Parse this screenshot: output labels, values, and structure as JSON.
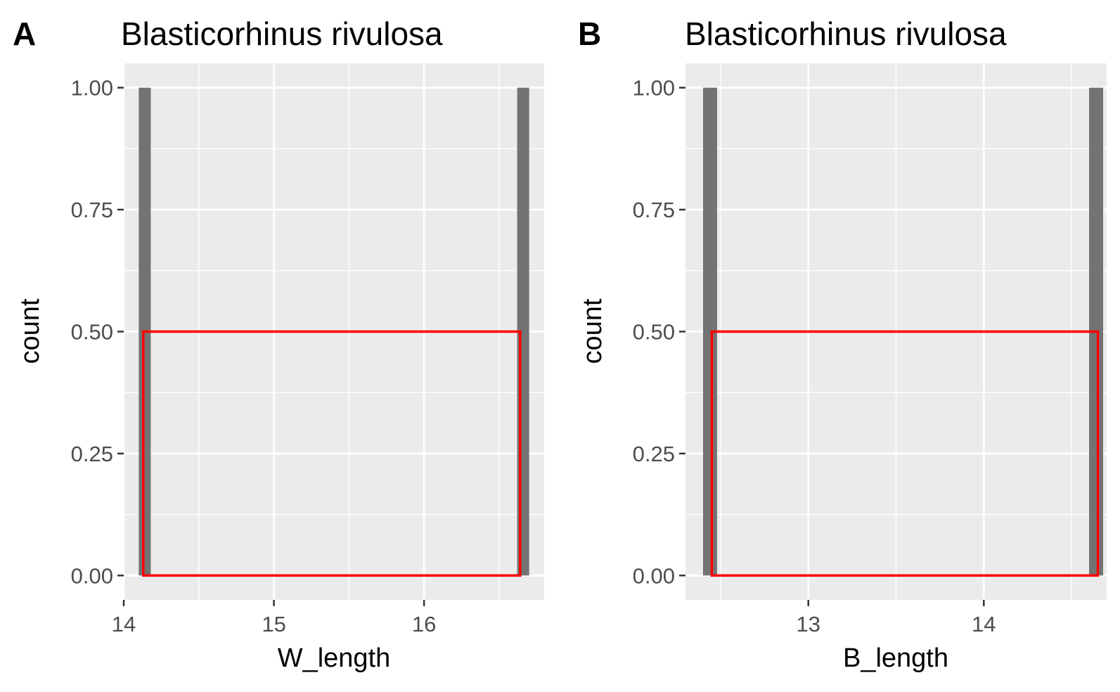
{
  "chart_data": [
    {
      "type": "bar",
      "tag": "A",
      "title": "Blasticorhinus rivulosa",
      "xlabel": "W_length",
      "ylabel": "count",
      "xlim": [
        14.0,
        16.8
      ],
      "ylim": [
        -0.05,
        1.05
      ],
      "x_ticks": [
        14,
        15,
        16
      ],
      "x_tick_labels": [
        "14",
        "15",
        "16"
      ],
      "x_minor_gridlines": [
        14.5,
        15.5,
        16.5
      ],
      "y_ticks": [
        0,
        0.25,
        0.5,
        0.75,
        1
      ],
      "y_tick_labels": [
        "0.00",
        "0.25",
        "0.50",
        "0.75",
        "1.00"
      ],
      "y_minor_gridlines": [
        0.125,
        0.375,
        0.625,
        0.875
      ],
      "grid": true,
      "bars": [
        {
          "x_start": 14.1,
          "x_end": 14.18,
          "count": 1
        },
        {
          "x_start": 16.62,
          "x_end": 16.7,
          "count": 1
        }
      ],
      "overlay_rect": {
        "x_start": 14.13,
        "x_end": 16.64,
        "y_start": 0,
        "y_end": 0.5,
        "color": "#ff0000"
      },
      "bar_color": "#737373",
      "panel_bg": "#ebebeb"
    },
    {
      "type": "bar",
      "tag": "B",
      "title": "Blasticorhinus rivulosa",
      "xlabel": "B_length",
      "ylabel": "count",
      "xlim": [
        12.3,
        14.7
      ],
      "ylim": [
        -0.05,
        1.05
      ],
      "x_ticks": [
        13,
        14
      ],
      "x_tick_labels": [
        "13",
        "14"
      ],
      "x_minor_gridlines": [
        12.5,
        13.5,
        14.5
      ],
      "y_ticks": [
        0,
        0.25,
        0.5,
        0.75,
        1
      ],
      "y_tick_labels": [
        "0.00",
        "0.25",
        "0.50",
        "0.75",
        "1.00"
      ],
      "y_minor_gridlines": [
        0.125,
        0.375,
        0.625,
        0.875
      ],
      "grid": true,
      "bars": [
        {
          "x_start": 12.4,
          "x_end": 12.48,
          "count": 1
        },
        {
          "x_start": 14.6,
          "x_end": 14.68,
          "count": 1
        }
      ],
      "overlay_rect": {
        "x_start": 12.45,
        "x_end": 14.65,
        "y_start": 0,
        "y_end": 0.5,
        "color": "#ff0000"
      },
      "bar_color": "#737373",
      "panel_bg": "#ebebeb"
    }
  ]
}
